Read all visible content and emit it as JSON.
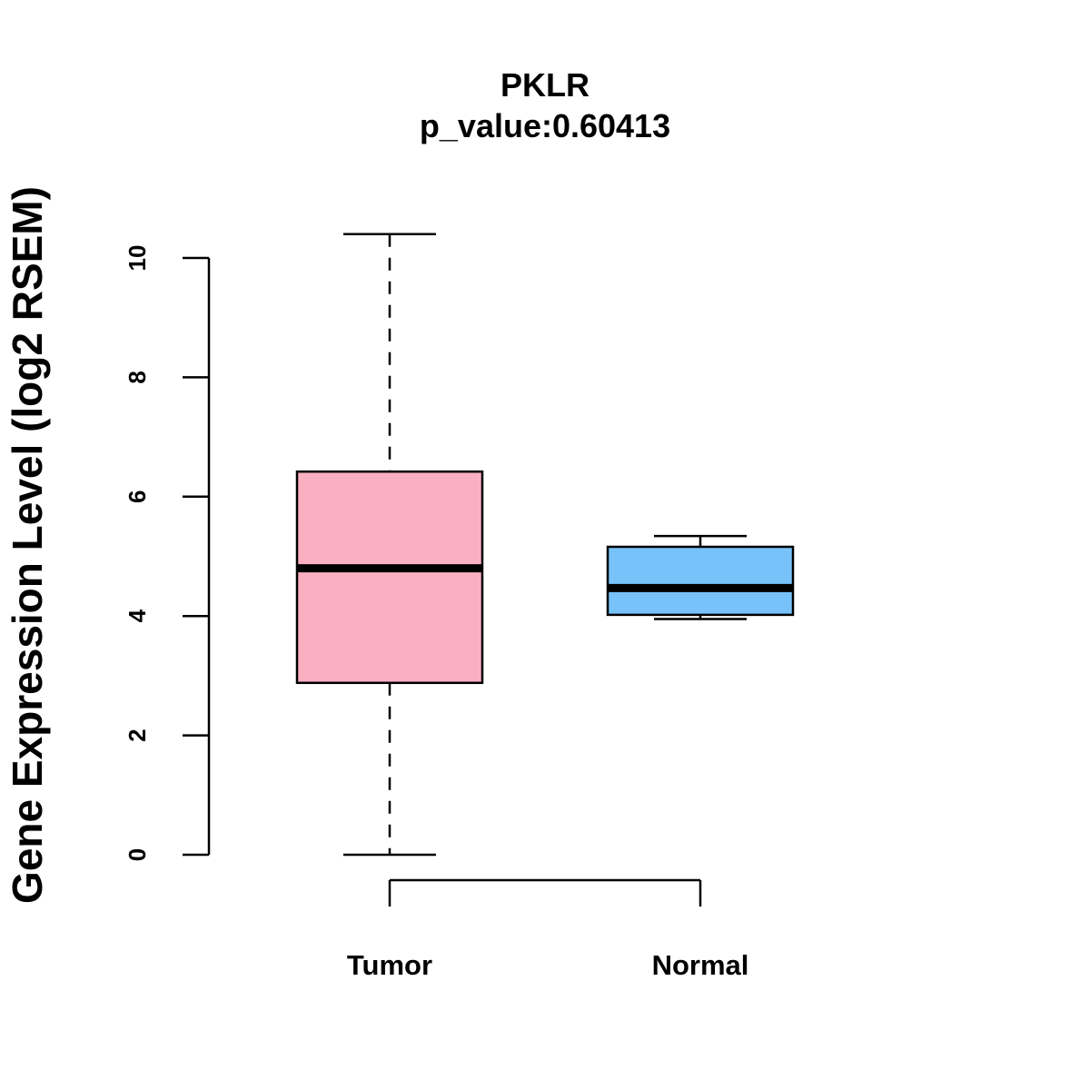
{
  "chart_data": {
    "type": "box",
    "title": "PKLR",
    "subtitle": "p_value:0.60413",
    "ylabel": "Gene Expression Level (log2 RSEM)",
    "xlabel": "",
    "ylim": [
      0,
      10
    ],
    "yticks": [
      "0",
      "2",
      "4",
      "6",
      "8",
      "10"
    ],
    "grid": false,
    "categories": [
      "Tumor",
      "Normal"
    ],
    "boxes": [
      {
        "category": "Tumor",
        "whisker_low": 0.0,
        "q1": 2.88,
        "median": 4.8,
        "q3": 6.42,
        "whisker_high": 10.4,
        "color": "#FBB0C2"
      },
      {
        "category": "Normal",
        "whisker_low": 3.95,
        "q1": 4.02,
        "median": 4.47,
        "q3": 5.16,
        "whisker_high": 5.34,
        "color": "#77C2F9"
      }
    ]
  }
}
